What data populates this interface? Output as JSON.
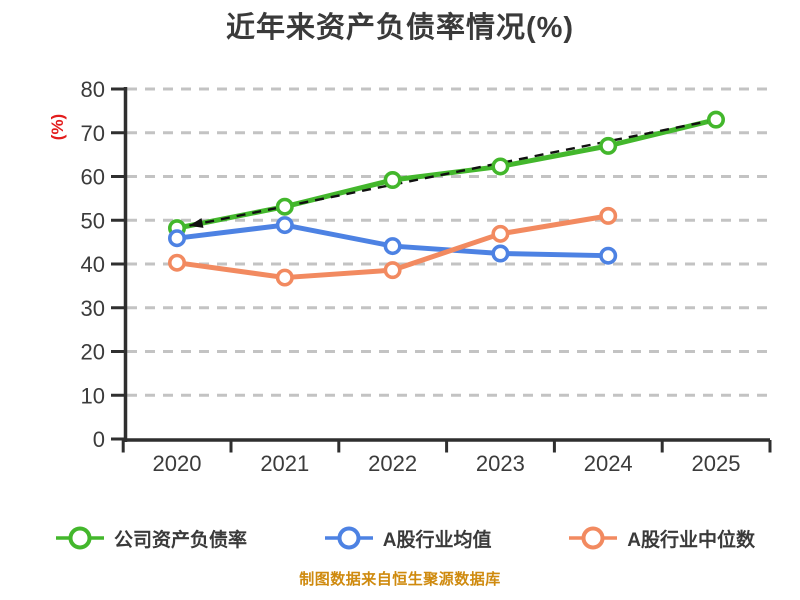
{
  "title": "近年来资产负债率情况(%)",
  "y_axis_label": "(%)",
  "footer": "制图数据来自恒生聚源数据库",
  "colors": {
    "title": "#3a3a3a",
    "axis": "#2f2f2f",
    "grid": "#c3c3c3",
    "tick_label": "#3b3b3b",
    "y_axis_label": "#e31c1c",
    "footer": "#cf8a0e",
    "trend_arrow": "#111111"
  },
  "legend": [
    {
      "label": "公司资产负债率",
      "color": "#43b72c"
    },
    {
      "label": "A股行业均值",
      "color": "#4d82e3"
    },
    {
      "label": "A股行业中位数",
      "color": "#f28a60"
    }
  ],
  "chart_data": {
    "type": "line",
    "title": "近年来资产负债率情况(%)",
    "xlabel": "",
    "ylabel": "(%)",
    "x": [
      2020,
      2021,
      2022,
      2023,
      2024,
      2025
    ],
    "x_tick_labels": [
      "2020",
      "2021",
      "2022",
      "2023",
      "2024",
      "2025"
    ],
    "y_ticks": [
      0,
      10,
      20,
      30,
      40,
      50,
      60,
      70,
      80
    ],
    "ylim": [
      0,
      80
    ],
    "grid": "horizontal-dashed",
    "legend_position": "bottom",
    "series": [
      {
        "name": "公司资产负债率",
        "color": "#43b72c",
        "x": [
          2020,
          2021,
          2022,
          2023,
          2024,
          2025
        ],
        "values": [
          48.2,
          53.1,
          59.2,
          62.3,
          67.0,
          73.0
        ]
      },
      {
        "name": "A股行业均值",
        "color": "#4d82e3",
        "x": [
          2020,
          2021,
          2022,
          2023,
          2024
        ],
        "values": [
          45.9,
          48.9,
          44.1,
          42.4,
          41.9
        ]
      },
      {
        "name": "A股行业中位数",
        "color": "#f28a60",
        "x": [
          2020,
          2021,
          2022,
          2023,
          2024
        ],
        "values": [
          40.3,
          36.9,
          38.6,
          46.9,
          51.0
        ]
      }
    ],
    "trend_annotation": {
      "style": "black-dashed-arrow",
      "from_x": 2025,
      "from_value": 73.0,
      "to_x": 2020,
      "to_value": 48.2
    }
  }
}
